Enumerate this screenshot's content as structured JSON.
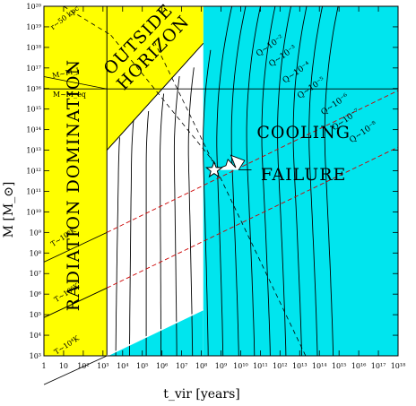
{
  "chart_data": {
    "type": "line",
    "title": "",
    "xlabel": "t_vir [years]",
    "ylabel": "M [M_⊙]",
    "x_scale": "log",
    "y_scale": "log",
    "xlim_log10": [
      0,
      18
    ],
    "ylim_log10": [
      3,
      20
    ],
    "x_tick_labels": [
      "1",
      "10",
      "10²",
      "10³",
      "10⁴",
      "10⁵",
      "10⁶",
      "10⁷",
      "10⁸",
      "10⁹",
      "10¹⁰",
      "10¹¹",
      "10¹²",
      "10¹³",
      "10¹⁴",
      "10¹⁵",
      "10¹⁶",
      "10¹⁷",
      "10¹⁸"
    ],
    "y_tick_labels": [
      "10³",
      "10⁴",
      "10⁵",
      "10⁶",
      "10⁷",
      "10⁸",
      "10⁹",
      "10¹⁰",
      "10¹¹",
      "10¹²",
      "10¹³",
      "10¹⁴",
      "10¹⁵",
      "10¹⁶",
      "10¹⁷",
      "10¹⁸",
      "10¹⁹",
      "10²⁰"
    ],
    "regions": [
      {
        "name": "radiation-domination",
        "label": "RADIATION DOMINATION",
        "color": "#ffff00",
        "x_log10": [
          0,
          3.2
        ]
      },
      {
        "name": "outside-horizon",
        "label_lines": [
          "OUTSIDE",
          "HORIZON"
        ],
        "color": "#ffff00",
        "boundary_from_log10": [
          3.2,
          13.0
        ],
        "boundary_to_log10": [
          8.1,
          18.3
        ]
      },
      {
        "name": "cooling-failure",
        "label_lines": [
          "COOLING",
          "FAILURE"
        ],
        "color": "#00e5ee",
        "x_min_log10": 8.1
      }
    ],
    "q_curves": {
      "labels": [
        "Q~10⁻²",
        "Q~10⁻³",
        "Q~10⁻⁴",
        "Q~10⁻⁵",
        "Q~10⁻⁶",
        "Q~10⁻⁷",
        "Q~10⁻⁸"
      ],
      "bottom_x_log10": [
        3.65,
        4.35,
        5.2,
        5.95,
        6.75,
        7.55,
        8.35,
        9.1,
        9.9,
        10.7,
        11.5,
        12.3,
        13.1,
        13.9,
        14.7
      ],
      "top_x_log10": [
        3.95,
        4.55,
        5.2,
        5.85,
        6.5,
        7.15,
        7.85,
        8.5,
        9.2,
        9.95,
        10.7,
        11.5,
        12.3,
        13.1,
        13.9
      ],
      "label_positions_log10": [
        [
          10.9,
          17.55
        ],
        [
          11.55,
          17.05
        ],
        [
          12.25,
          16.25
        ],
        [
          13.0,
          15.5
        ],
        [
          14.2,
          14.7
        ],
        [
          14.75,
          13.95
        ],
        [
          15.65,
          13.35
        ]
      ]
    },
    "temperature_lines": {
      "labels": [
        "T~10⁴K",
        "T~10⁶K",
        "T~10⁸K"
      ],
      "lines_log10": [
        {
          "from": [
            3.2,
            3.0
          ],
          "to": [
            8.1,
            5.25
          ],
          "color": "#ffffff"
        },
        {
          "from": [
            3.2,
            6.3
          ],
          "to": [
            18.0,
            13.15
          ],
          "color": "#cc0000"
        },
        {
          "from": [
            3.2,
            9.0
          ],
          "to": [
            18.0,
            15.9
          ],
          "color": "#cc0000"
        }
      ],
      "label_positions_log10": [
        [
          0.62,
          3.05
        ],
        [
          0.62,
          5.6
        ],
        [
          0.45,
          8.3
        ]
      ]
    },
    "reference_lines": {
      "horizontal_log10": 15.98,
      "jeans_label": "M~M_J",
      "jeans_label_log10": [
        0.45,
        16.5
      ],
      "m_eq_label": "M~M_eq",
      "m_eq_label_log10": [
        0.45,
        15.6
      ],
      "horizon_label": "r~50 kpc",
      "horizon_label_log10": [
        0.45,
        18.85
      ],
      "dashed_lines_log10": [
        {
          "from": [
            5.6,
            18.3
          ],
          "to": [
            8.6,
            12.4
          ]
        },
        {
          "from": [
            8.6,
            12.4
          ],
          "to": [
            13.3,
            3.0
          ]
        },
        {
          "from": [
            1.0,
            20.0
          ],
          "to": [
            3.4,
            18.6
          ]
        },
        {
          "from": [
            3.4,
            18.6
          ],
          "to": [
            9.0,
            12.0
          ]
        }
      ]
    },
    "marker": {
      "shape": "star",
      "x_log10": 8.65,
      "y_log10": 12.03
    },
    "wiggle_log10": [
      [
        8.65,
        12.03
      ],
      [
        9.25,
        12.25
      ],
      [
        9.35,
        12.55
      ],
      [
        9.75,
        12.15
      ],
      [
        9.5,
        12.75
      ],
      [
        10.2,
        12.5
      ],
      [
        9.9,
        12.05
      ],
      [
        10.55,
        12.05
      ]
    ]
  }
}
